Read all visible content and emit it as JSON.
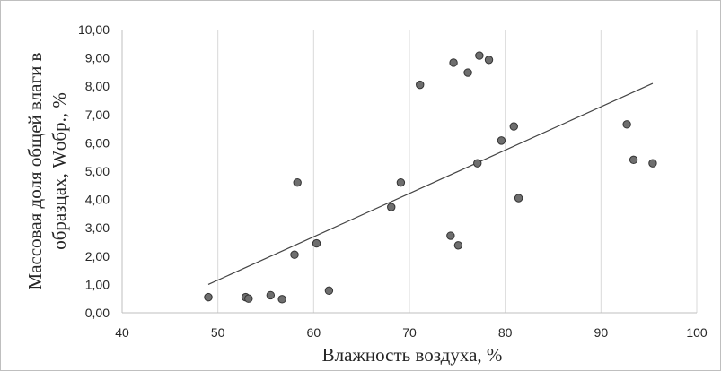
{
  "chart_data": {
    "type": "scatter",
    "title": "",
    "xlabel": "Влажность воздуха, %",
    "ylabel_line1": "Массовая доля общей влаги в",
    "ylabel_line2": "образцах, Wобр., %",
    "xlim": [
      40,
      100
    ],
    "ylim": [
      0,
      10
    ],
    "xticks": [
      40,
      50,
      60,
      70,
      80,
      90,
      100
    ],
    "xtick_labels": [
      "40",
      "50",
      "60",
      "70",
      "80",
      "90",
      "100"
    ],
    "yticks": [
      0,
      1,
      2,
      3,
      4,
      5,
      6,
      7,
      8,
      9,
      10
    ],
    "ytick_labels": [
      "0,00",
      "1,00",
      "2,00",
      "3,00",
      "4,00",
      "5,00",
      "6,00",
      "7,00",
      "8,00",
      "9,00",
      "10,00"
    ],
    "grid": "vertical",
    "legend": "none",
    "points": [
      {
        "x": 49.0,
        "y": 0.55
      },
      {
        "x": 52.9,
        "y": 0.55
      },
      {
        "x": 53.2,
        "y": 0.5
      },
      {
        "x": 55.5,
        "y": 0.62
      },
      {
        "x": 56.7,
        "y": 0.48
      },
      {
        "x": 58.0,
        "y": 2.05
      },
      {
        "x": 58.3,
        "y": 4.6
      },
      {
        "x": 60.3,
        "y": 2.45
      },
      {
        "x": 61.6,
        "y": 0.78
      },
      {
        "x": 68.1,
        "y": 3.73
      },
      {
        "x": 69.1,
        "y": 4.6
      },
      {
        "x": 71.1,
        "y": 8.05
      },
      {
        "x": 74.3,
        "y": 2.72
      },
      {
        "x": 74.6,
        "y": 8.83
      },
      {
        "x": 75.1,
        "y": 2.38
      },
      {
        "x": 76.1,
        "y": 8.48
      },
      {
        "x": 77.1,
        "y": 5.28
      },
      {
        "x": 77.3,
        "y": 9.08
      },
      {
        "x": 78.3,
        "y": 8.93
      },
      {
        "x": 79.6,
        "y": 6.08
      },
      {
        "x": 80.9,
        "y": 6.58
      },
      {
        "x": 81.4,
        "y": 4.05
      },
      {
        "x": 92.7,
        "y": 6.65
      },
      {
        "x": 93.4,
        "y": 5.4
      },
      {
        "x": 95.4,
        "y": 5.28
      }
    ],
    "trendline": {
      "x": [
        49.0,
        95.4
      ],
      "y": [
        1.0,
        8.1
      ]
    },
    "colors": {
      "marker_fill": "#6e6e6e",
      "marker_stroke": "#333333",
      "line": "#444444",
      "grid": "#d9d9d9",
      "text": "#262626"
    }
  }
}
